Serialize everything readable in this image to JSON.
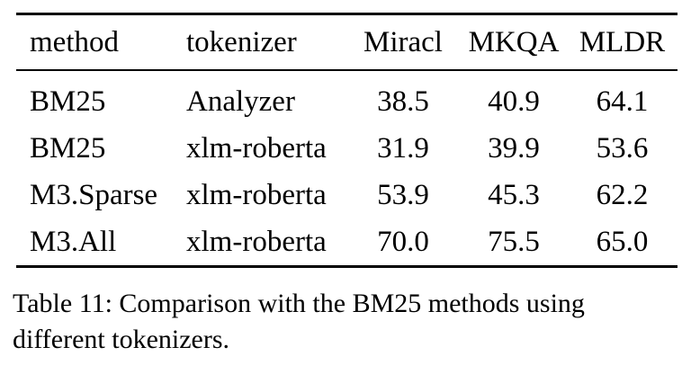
{
  "page": {
    "background_color": "#ffffff",
    "text_color": "#000000"
  },
  "table": {
    "columns": [
      {
        "label": "method",
        "align": "left"
      },
      {
        "label": "tokenizer",
        "align": "left"
      },
      {
        "label": "Miracl",
        "align": "center"
      },
      {
        "label": "MKQA",
        "align": "center"
      },
      {
        "label": "MLDR",
        "align": "center"
      }
    ],
    "rows": [
      [
        "BM25",
        "Analyzer",
        "38.5",
        "40.9",
        "64.1"
      ],
      [
        "BM25",
        "xlm-roberta",
        "31.9",
        "39.9",
        "53.6"
      ],
      [
        "M3.Sparse",
        "xlm-roberta",
        "53.9",
        "45.3",
        "62.2"
      ],
      [
        "M3.All",
        "xlm-roberta",
        "70.0",
        "75.5",
        "65.0"
      ]
    ]
  },
  "caption": {
    "text": "Table 11: Comparison with the BM25 methods using different tokenizers."
  }
}
